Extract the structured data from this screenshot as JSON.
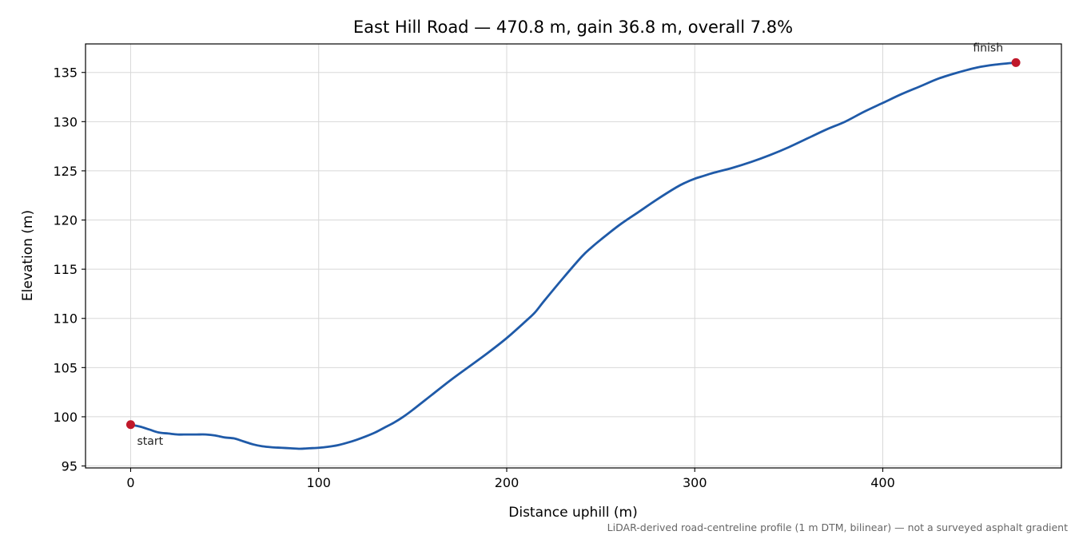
{
  "chart_data": {
    "type": "line",
    "title": "East Hill Road — 470.8 m, gain 36.8 m, overall 7.8%",
    "xlabel": "Distance uphill (m)",
    "ylabel": "Elevation (m)",
    "xlim": [
      -24,
      495
    ],
    "ylim": [
      94.8,
      137.9
    ],
    "xticks": [
      0,
      100,
      200,
      300,
      400
    ],
    "yticks": [
      95,
      100,
      105,
      110,
      115,
      120,
      125,
      130,
      135
    ],
    "grid": true,
    "line_color": "#1f5aa8",
    "marker_color": "#c0182a",
    "series": [
      {
        "x": [
          0,
          5,
          10,
          15,
          20,
          25,
          30,
          35,
          40,
          45,
          50,
          55,
          60,
          65,
          70,
          75,
          80,
          85,
          90,
          95,
          100,
          105,
          110,
          115,
          120,
          125,
          130,
          135,
          140,
          145,
          150,
          160,
          170,
          180,
          190,
          200,
          210,
          215,
          220,
          230,
          240,
          245,
          250,
          260,
          270,
          280,
          290,
          295,
          300,
          305,
          310,
          320,
          330,
          340,
          350,
          360,
          370,
          380,
          390,
          400,
          410,
          420,
          430,
          440,
          450,
          460,
          470.8
        ],
        "values": [
          99.2,
          99.0,
          98.7,
          98.4,
          98.3,
          98.2,
          98.2,
          98.2,
          98.2,
          98.1,
          97.9,
          97.8,
          97.5,
          97.2,
          97.0,
          96.9,
          96.85,
          96.8,
          96.75,
          96.8,
          96.85,
          96.95,
          97.1,
          97.35,
          97.65,
          98.0,
          98.4,
          98.9,
          99.4,
          100.0,
          100.7,
          102.2,
          103.7,
          105.1,
          106.5,
          108.0,
          109.7,
          110.6,
          111.8,
          114.1,
          116.3,
          117.2,
          118.0,
          119.5,
          120.8,
          122.1,
          123.3,
          123.8,
          124.2,
          124.5,
          124.8,
          125.3,
          125.9,
          126.6,
          127.4,
          128.3,
          129.2,
          130.0,
          131.0,
          131.9,
          132.8,
          133.6,
          134.4,
          135.0,
          135.5,
          135.8,
          136.0
        ]
      }
    ],
    "annotations": [
      {
        "text": "start",
        "x": 0,
        "y": 99.2
      },
      {
        "text": "finish",
        "x": 470.8,
        "y": 136.0
      }
    ],
    "footnote": "LiDAR-derived road-centreline profile (1 m DTM, bilinear) — not a surveyed asphalt gradient"
  }
}
